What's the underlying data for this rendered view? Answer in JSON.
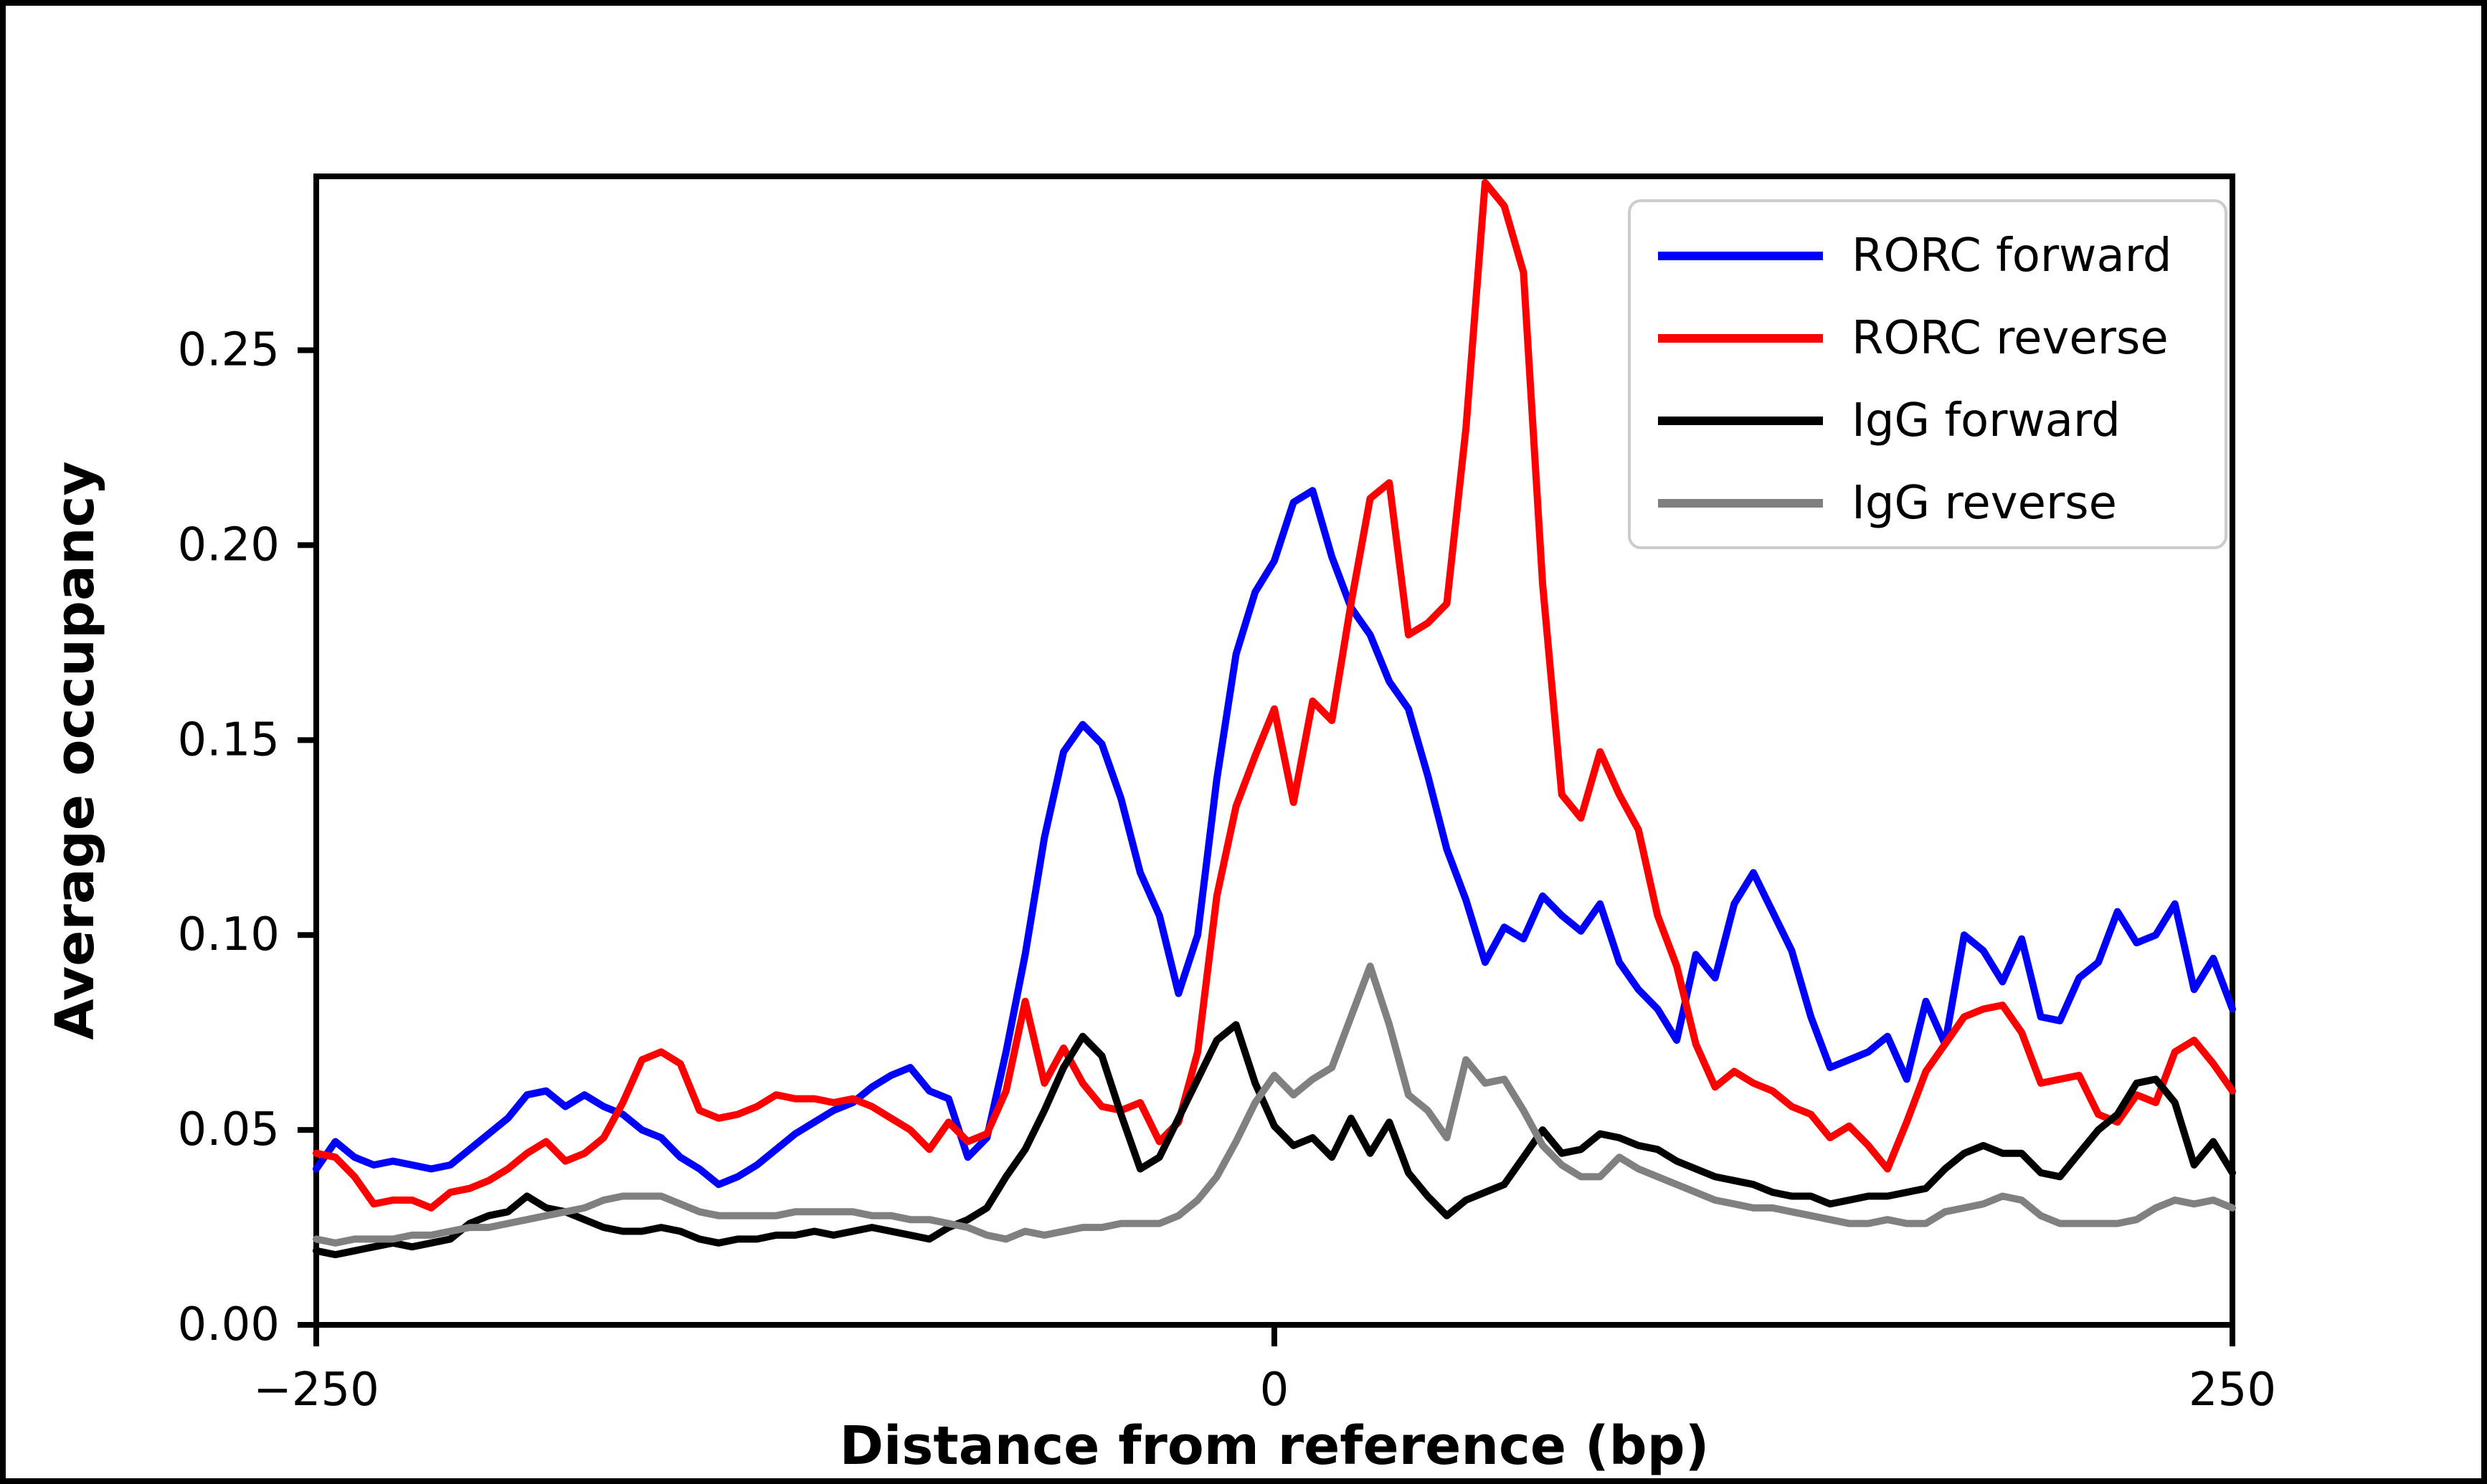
{
  "chart_data": {
    "type": "line",
    "title": "",
    "xlabel": "Distance from reference (bp)",
    "ylabel": "Average occupancy",
    "xlim": [
      -250,
      250
    ],
    "ylim": [
      0,
      0.2946
    ],
    "grid": false,
    "legend_position": "upper right",
    "x_ticks": [
      {
        "value": -250,
        "label": "−250"
      },
      {
        "value": 0,
        "label": "0"
      },
      {
        "value": 250,
        "label": "250"
      }
    ],
    "y_ticks": [
      {
        "value": 0.0,
        "label": "0.00"
      },
      {
        "value": 0.05,
        "label": "0.05"
      },
      {
        "value": 0.1,
        "label": "0.10"
      },
      {
        "value": 0.15,
        "label": "0.15"
      },
      {
        "value": 0.2,
        "label": "0.20"
      },
      {
        "value": 0.25,
        "label": "0.25"
      }
    ],
    "x": [
      -250,
      -245,
      -240,
      -235,
      -230,
      -225,
      -220,
      -215,
      -210,
      -205,
      -200,
      -195,
      -190,
      -185,
      -180,
      -175,
      -170,
      -165,
      -160,
      -155,
      -150,
      -145,
      -140,
      -135,
      -130,
      -125,
      -120,
      -115,
      -110,
      -105,
      -100,
      -95,
      -90,
      -85,
      -80,
      -75,
      -70,
      -65,
      -60,
      -55,
      -50,
      -45,
      -40,
      -35,
      -30,
      -25,
      -20,
      -15,
      -10,
      -5,
      0,
      5,
      10,
      15,
      20,
      25,
      30,
      35,
      40,
      45,
      50,
      55,
      60,
      65,
      70,
      75,
      80,
      85,
      90,
      95,
      100,
      105,
      110,
      115,
      120,
      125,
      130,
      135,
      140,
      145,
      150,
      155,
      160,
      165,
      170,
      175,
      180,
      185,
      190,
      195,
      200,
      205,
      210,
      215,
      220,
      225,
      230,
      235,
      240,
      245,
      250
    ],
    "series": [
      {
        "name": "RORC forward",
        "color": "#0000ff",
        "values": [
          0.04,
          0.047,
          0.043,
          0.041,
          0.042,
          0.041,
          0.04,
          0.041,
          0.045,
          0.049,
          0.053,
          0.059,
          0.06,
          0.056,
          0.059,
          0.056,
          0.054,
          0.05,
          0.048,
          0.043,
          0.04,
          0.036,
          0.038,
          0.041,
          0.045,
          0.049,
          0.052,
          0.055,
          0.057,
          0.061,
          0.064,
          0.066,
          0.06,
          0.058,
          0.043,
          0.048,
          0.07,
          0.095,
          0.125,
          0.147,
          0.154,
          0.149,
          0.135,
          0.116,
          0.105,
          0.085,
          0.1,
          0.14,
          0.172,
          0.188,
          0.196,
          0.211,
          0.214,
          0.197,
          0.184,
          0.177,
          0.165,
          0.158,
          0.141,
          0.122,
          0.109,
          0.093,
          0.102,
          0.099,
          0.11,
          0.105,
          0.101,
          0.108,
          0.093,
          0.086,
          0.081,
          0.073,
          0.095,
          0.089,
          0.108,
          0.116,
          0.106,
          0.096,
          0.079,
          0.066,
          0.068,
          0.07,
          0.074,
          0.063,
          0.083,
          0.072,
          0.1,
          0.096,
          0.088,
          0.099,
          0.079,
          0.078,
          0.089,
          0.093,
          0.106,
          0.098,
          0.1,
          0.108,
          0.086,
          0.094,
          0.081
        ]
      },
      {
        "name": "RORC reverse",
        "color": "#ff0000",
        "values": [
          0.044,
          0.043,
          0.038,
          0.031,
          0.032,
          0.032,
          0.03,
          0.034,
          0.035,
          0.037,
          0.04,
          0.044,
          0.047,
          0.042,
          0.044,
          0.048,
          0.057,
          0.068,
          0.07,
          0.067,
          0.055,
          0.053,
          0.054,
          0.056,
          0.059,
          0.058,
          0.058,
          0.057,
          0.058,
          0.056,
          0.053,
          0.05,
          0.045,
          0.052,
          0.047,
          0.049,
          0.06,
          0.083,
          0.062,
          0.071,
          0.062,
          0.056,
          0.055,
          0.057,
          0.047,
          0.052,
          0.07,
          0.11,
          0.133,
          0.146,
          0.158,
          0.134,
          0.16,
          0.155,
          0.185,
          0.212,
          0.216,
          0.177,
          0.18,
          0.185,
          0.23,
          0.293,
          0.287,
          0.27,
          0.19,
          0.136,
          0.13,
          0.147,
          0.136,
          0.127,
          0.105,
          0.092,
          0.072,
          0.061,
          0.065,
          0.062,
          0.06,
          0.056,
          0.054,
          0.048,
          0.051,
          0.046,
          0.04,
          0.052,
          0.065,
          0.072,
          0.079,
          0.081,
          0.082,
          0.075,
          0.062,
          0.063,
          0.064,
          0.054,
          0.052,
          0.059,
          0.057,
          0.07,
          0.073,
          0.067,
          0.06
        ]
      },
      {
        "name": "IgG forward",
        "color": "#000000",
        "values": [
          0.019,
          0.018,
          0.019,
          0.02,
          0.021,
          0.02,
          0.021,
          0.022,
          0.026,
          0.028,
          0.029,
          0.033,
          0.03,
          0.029,
          0.027,
          0.025,
          0.024,
          0.024,
          0.025,
          0.024,
          0.022,
          0.021,
          0.022,
          0.022,
          0.023,
          0.023,
          0.024,
          0.023,
          0.024,
          0.025,
          0.024,
          0.023,
          0.022,
          0.025,
          0.027,
          0.03,
          0.038,
          0.045,
          0.055,
          0.066,
          0.074,
          0.069,
          0.054,
          0.04,
          0.043,
          0.053,
          0.063,
          0.073,
          0.077,
          0.062,
          0.051,
          0.046,
          0.048,
          0.043,
          0.053,
          0.044,
          0.052,
          0.039,
          0.033,
          0.028,
          0.032,
          0.034,
          0.036,
          0.043,
          0.05,
          0.044,
          0.045,
          0.049,
          0.048,
          0.046,
          0.045,
          0.042,
          0.04,
          0.038,
          0.037,
          0.036,
          0.034,
          0.033,
          0.033,
          0.031,
          0.032,
          0.033,
          0.033,
          0.034,
          0.035,
          0.04,
          0.044,
          0.046,
          0.044,
          0.044,
          0.039,
          0.038,
          0.044,
          0.05,
          0.054,
          0.062,
          0.063,
          0.057,
          0.041,
          0.047,
          0.039
        ]
      },
      {
        "name": "IgG reverse",
        "color": "#808080",
        "values": [
          0.022,
          0.021,
          0.022,
          0.022,
          0.022,
          0.023,
          0.023,
          0.024,
          0.025,
          0.025,
          0.026,
          0.027,
          0.028,
          0.029,
          0.03,
          0.032,
          0.033,
          0.033,
          0.033,
          0.031,
          0.029,
          0.028,
          0.028,
          0.028,
          0.028,
          0.029,
          0.029,
          0.029,
          0.029,
          0.028,
          0.028,
          0.027,
          0.027,
          0.026,
          0.025,
          0.023,
          0.022,
          0.024,
          0.023,
          0.024,
          0.025,
          0.025,
          0.026,
          0.026,
          0.026,
          0.028,
          0.032,
          0.038,
          0.047,
          0.057,
          0.064,
          0.059,
          0.063,
          0.066,
          0.079,
          0.092,
          0.077,
          0.059,
          0.055,
          0.048,
          0.068,
          0.062,
          0.063,
          0.055,
          0.046,
          0.041,
          0.038,
          0.038,
          0.043,
          0.04,
          0.038,
          0.036,
          0.034,
          0.032,
          0.031,
          0.03,
          0.03,
          0.029,
          0.028,
          0.027,
          0.026,
          0.026,
          0.027,
          0.026,
          0.026,
          0.029,
          0.03,
          0.031,
          0.033,
          0.032,
          0.028,
          0.026,
          0.026,
          0.026,
          0.026,
          0.027,
          0.03,
          0.032,
          0.031,
          0.032,
          0.03
        ]
      }
    ]
  }
}
